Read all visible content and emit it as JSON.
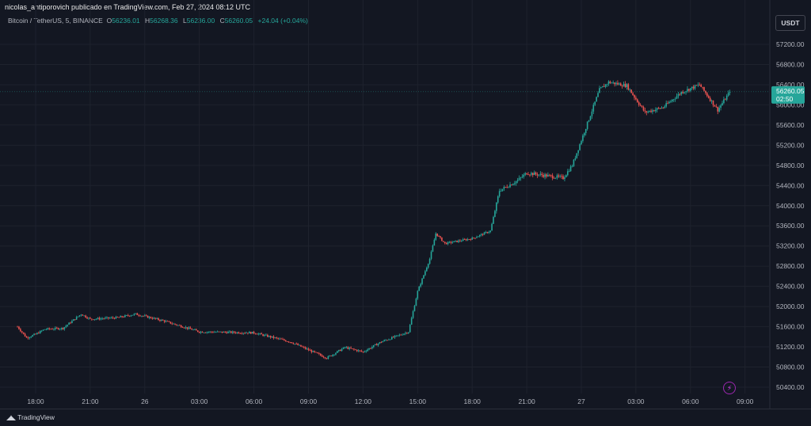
{
  "header": {
    "publisher_line": "nicolas_antiporovich publicado en TradingView.com, Feb 27, 2024 08:12 UTC"
  },
  "legend": {
    "symbol": "Bitcoin / TetherUS, 5, BINANCE",
    "open_label": "O",
    "open": "56236.01",
    "high_label": "H",
    "high": "56268.36",
    "low_label": "L",
    "low": "56236.00",
    "close_label": "C",
    "close": "56260.05",
    "change": "+24.04 (+0.04%)"
  },
  "currency_button": "USDT",
  "price_tag": {
    "price": "56260.05",
    "countdown": "02:50",
    "color": "#26a69a"
  },
  "footer": {
    "brand": "TradingView"
  },
  "colors": {
    "up": "#26a69a",
    "down": "#ef5350",
    "background": "#131722",
    "grid": "#1e222d"
  },
  "icons": {
    "alert": "lightning-alert-icon",
    "logo": "tradingview-logo-icon"
  },
  "chart_data": {
    "type": "candlestick",
    "x_axis_ticks": [
      "18:00",
      "21:00",
      "26",
      "03:00",
      "06:00",
      "09:00",
      "12:00",
      "15:00",
      "18:00",
      "21:00",
      "27",
      "03:00",
      "06:00",
      "09:00"
    ],
    "y_axis_ticks": [
      57200,
      56800,
      56400,
      56000,
      55600,
      55200,
      54800,
      54400,
      54000,
      53600,
      53200,
      52800,
      52400,
      52000,
      51600,
      51200,
      50800,
      50400
    ],
    "ylim": [
      50300,
      57500
    ],
    "last_price": 56260.05,
    "approx_close_path": [
      {
        "t": "17:00",
        "close": 51600
      },
      {
        "t": "17:30",
        "close": 51380
      },
      {
        "t": "18:00",
        "close": 51450
      },
      {
        "t": "18:30",
        "close": 51550
      },
      {
        "t": "19:30",
        "close": 51570
      },
      {
        "t": "20:30",
        "close": 51850
      },
      {
        "t": "21:00",
        "close": 51750
      },
      {
        "t": "22:30",
        "close": 51780
      },
      {
        "t": "25T23:30",
        "close": 51850
      },
      {
        "t": "26T01:00",
        "close": 51720
      },
      {
        "t": "03:00",
        "close": 51500
      },
      {
        "t": "06:00",
        "close": 51480
      },
      {
        "t": "08:00",
        "close": 51300
      },
      {
        "t": "10:00",
        "close": 50980
      },
      {
        "t": "11:00",
        "close": 51190
      },
      {
        "t": "12:00",
        "close": 51100
      },
      {
        "t": "13:00",
        "close": 51300
      },
      {
        "t": "14:30",
        "close": 51500
      },
      {
        "t": "15:00",
        "close": 52300
      },
      {
        "t": "15:40",
        "close": 52950
      },
      {
        "t": "16:00",
        "close": 53450
      },
      {
        "t": "16:30",
        "close": 53250
      },
      {
        "t": "18:00",
        "close": 53350
      },
      {
        "t": "19:00",
        "close": 53500
      },
      {
        "t": "19:30",
        "close": 54300
      },
      {
        "t": "20:30",
        "close": 54500
      },
      {
        "t": "21:00",
        "close": 54650
      },
      {
        "t": "23:00",
        "close": 54550
      },
      {
        "t": "26T23:30",
        "close": 54800
      },
      {
        "t": "27T01:00",
        "close": 56300
      },
      {
        "t": "01:30",
        "close": 56450
      },
      {
        "t": "02:30",
        "close": 56380
      },
      {
        "t": "03:30",
        "close": 55850
      },
      {
        "t": "04:30",
        "close": 55950
      },
      {
        "t": "05:30",
        "close": 56250
      },
      {
        "t": "06:30",
        "close": 56400
      },
      {
        "t": "07:30",
        "close": 55900
      },
      {
        "t": "08:10",
        "close": 56260
      }
    ]
  }
}
